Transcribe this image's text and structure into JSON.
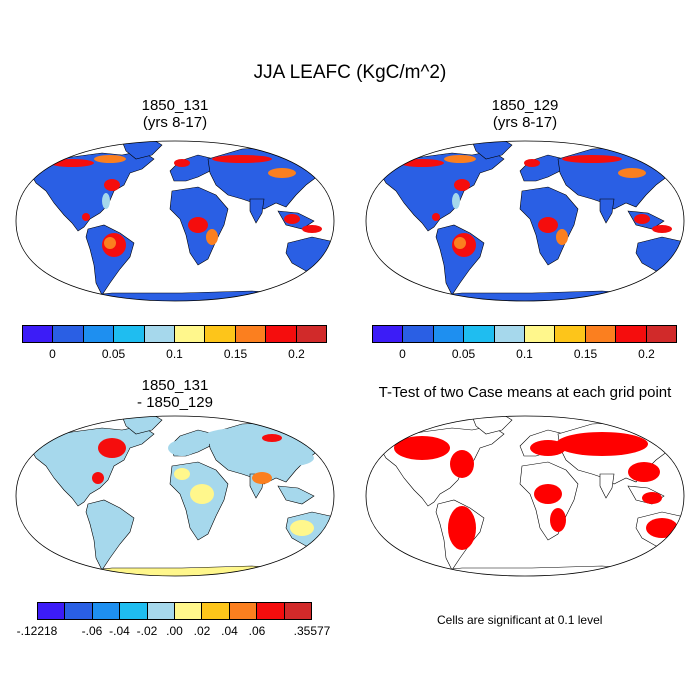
{
  "title": "JJA LEAFC (KgC/m^2)",
  "panels": [
    {
      "line1": "1850_131",
      "line2": "(yrs 8-17)"
    },
    {
      "line1": "1850_129",
      "line2": "(yrs 8-17)"
    },
    {
      "line1": "1850_131",
      "line2": "- 1850_129"
    },
    {
      "line1": "T-Test of two Case means at each grid point",
      "line2": ""
    }
  ],
  "colorbar_top": {
    "colors": [
      "#3c1cf7",
      "#2a5fe4",
      "#1e8ff0",
      "#1fbdf0",
      "#a6d8ec",
      "#fff78c",
      "#fdc51a",
      "#fb7f1f",
      "#f50d0d",
      "#d12a2a"
    ],
    "ticks": [
      "0",
      "0.05",
      "0.1",
      "0.15",
      "0.2"
    ]
  },
  "colorbar_diff": {
    "colors": [
      "#3c1cf7",
      "#2a5fe4",
      "#1e8ff0",
      "#1fbdf0",
      "#a6d8ec",
      "#fff78c",
      "#fdc51a",
      "#fb7f1f",
      "#f50d0d",
      "#d12a2a"
    ],
    "ticks": [
      "-.12218",
      "-.06",
      "-.04",
      "-.02",
      ".00",
      ".02",
      ".04",
      ".06",
      ".35577"
    ]
  },
  "significance_note": "Cells are significant at 0.1 level",
  "map_colors": {
    "ocean": "#ffffff",
    "low": "#2a5fe4",
    "mid": "#a6d8ec",
    "pale": "#fff78c",
    "hot": "#f50d0d",
    "warm": "#fb7f1f",
    "sig": "#ff0000"
  }
}
